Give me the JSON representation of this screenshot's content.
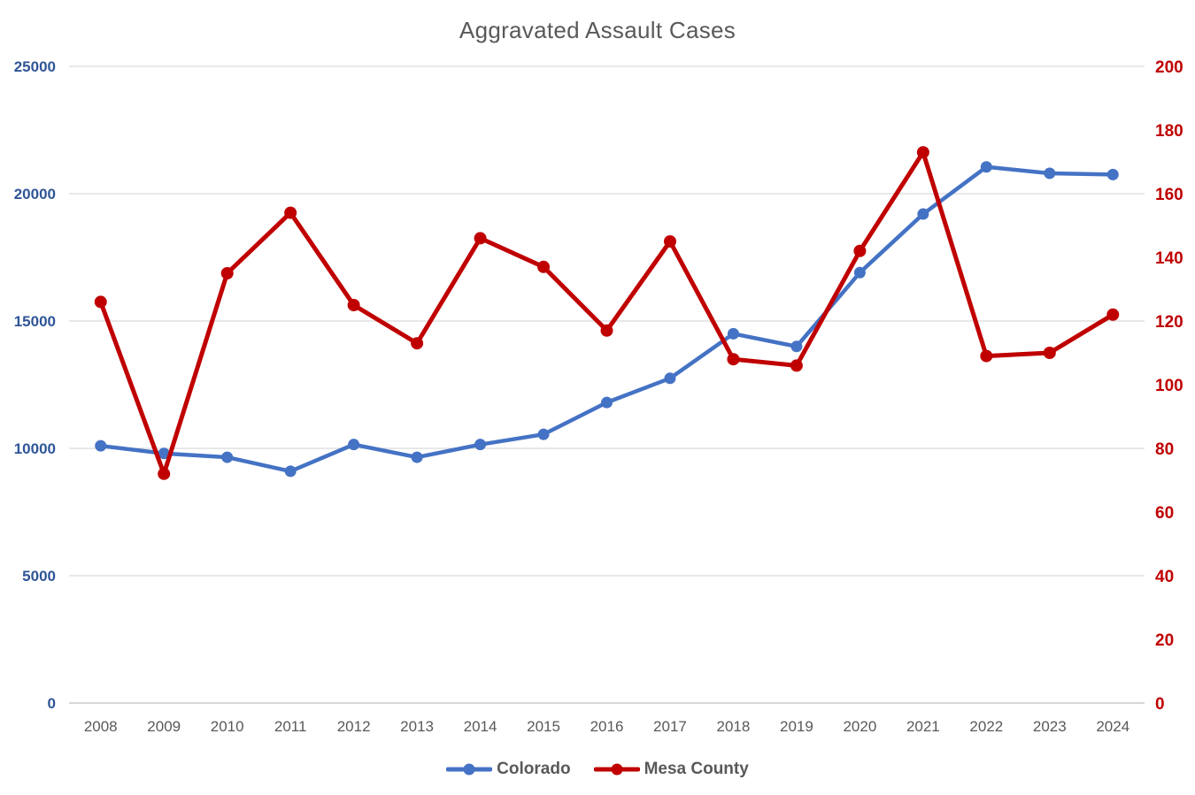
{
  "chart_data": {
    "type": "line",
    "title": "Aggravated Assault Cases",
    "x": [
      "2008",
      "2009",
      "2010",
      "2011",
      "2012",
      "2013",
      "2014",
      "2015",
      "2016",
      "2017",
      "2018",
      "2019",
      "2020",
      "2021",
      "2022",
      "2023",
      "2024"
    ],
    "series": [
      {
        "name": "Colorado",
        "axis": "left",
        "color": "#4472C4",
        "values": [
          10100,
          9800,
          9650,
          9100,
          10150,
          9650,
          10150,
          10550,
          11800,
          12750,
          14500,
          14000,
          16900,
          19200,
          21050,
          20800,
          20750
        ]
      },
      {
        "name": "Mesa County",
        "axis": "right",
        "color": "#C00000",
        "values": [
          126,
          72,
          135,
          154,
          125,
          113,
          146,
          137,
          117,
          145,
          108,
          106,
          142,
          173,
          109,
          110,
          122
        ]
      }
    ],
    "axes": {
      "left": {
        "min": 0,
        "max": 25000,
        "step": 5000,
        "labels": [
          "0",
          "5000",
          "10000",
          "15000",
          "20000",
          "25000"
        ],
        "label_color": "#2F5597"
      },
      "right": {
        "min": 0,
        "max": 200,
        "step": 20,
        "labels": [
          "0",
          "20",
          "40",
          "60",
          "80",
          "100",
          "120",
          "140",
          "160",
          "180",
          "200"
        ],
        "label_color": "#C00000"
      }
    },
    "grid": {
      "horizontal": true,
      "vertical": false,
      "color": "#D9D9D9",
      "axis_line_color": "#BFBFBF"
    },
    "x_label_color": "#595959",
    "title_color": "#595959",
    "legend_position": "bottom",
    "legend_text_color": "#595959"
  }
}
